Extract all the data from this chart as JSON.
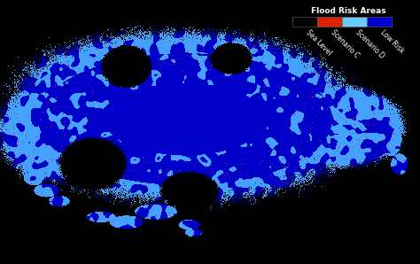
{
  "background_color": "#000000",
  "dark_blue": [
    0,
    0,
    200
  ],
  "light_blue": [
    70,
    160,
    255
  ],
  "red_color": [
    220,
    30,
    0
  ],
  "black_color": [
    0,
    0,
    0
  ],
  "legend_title": "Flood Risk Areas",
  "legend_colors": [
    "#000000",
    "#dd2200",
    "#66ccff",
    "#0000cc"
  ],
  "legend_labels": [
    "Sea Level",
    "Scenario C",
    "Scenario D",
    "Low Risk"
  ],
  "legend_title_color": "#ffffff",
  "legend_label_color": "#ffffff",
  "figsize": [
    4.74,
    2.98
  ],
  "dpi": 100
}
